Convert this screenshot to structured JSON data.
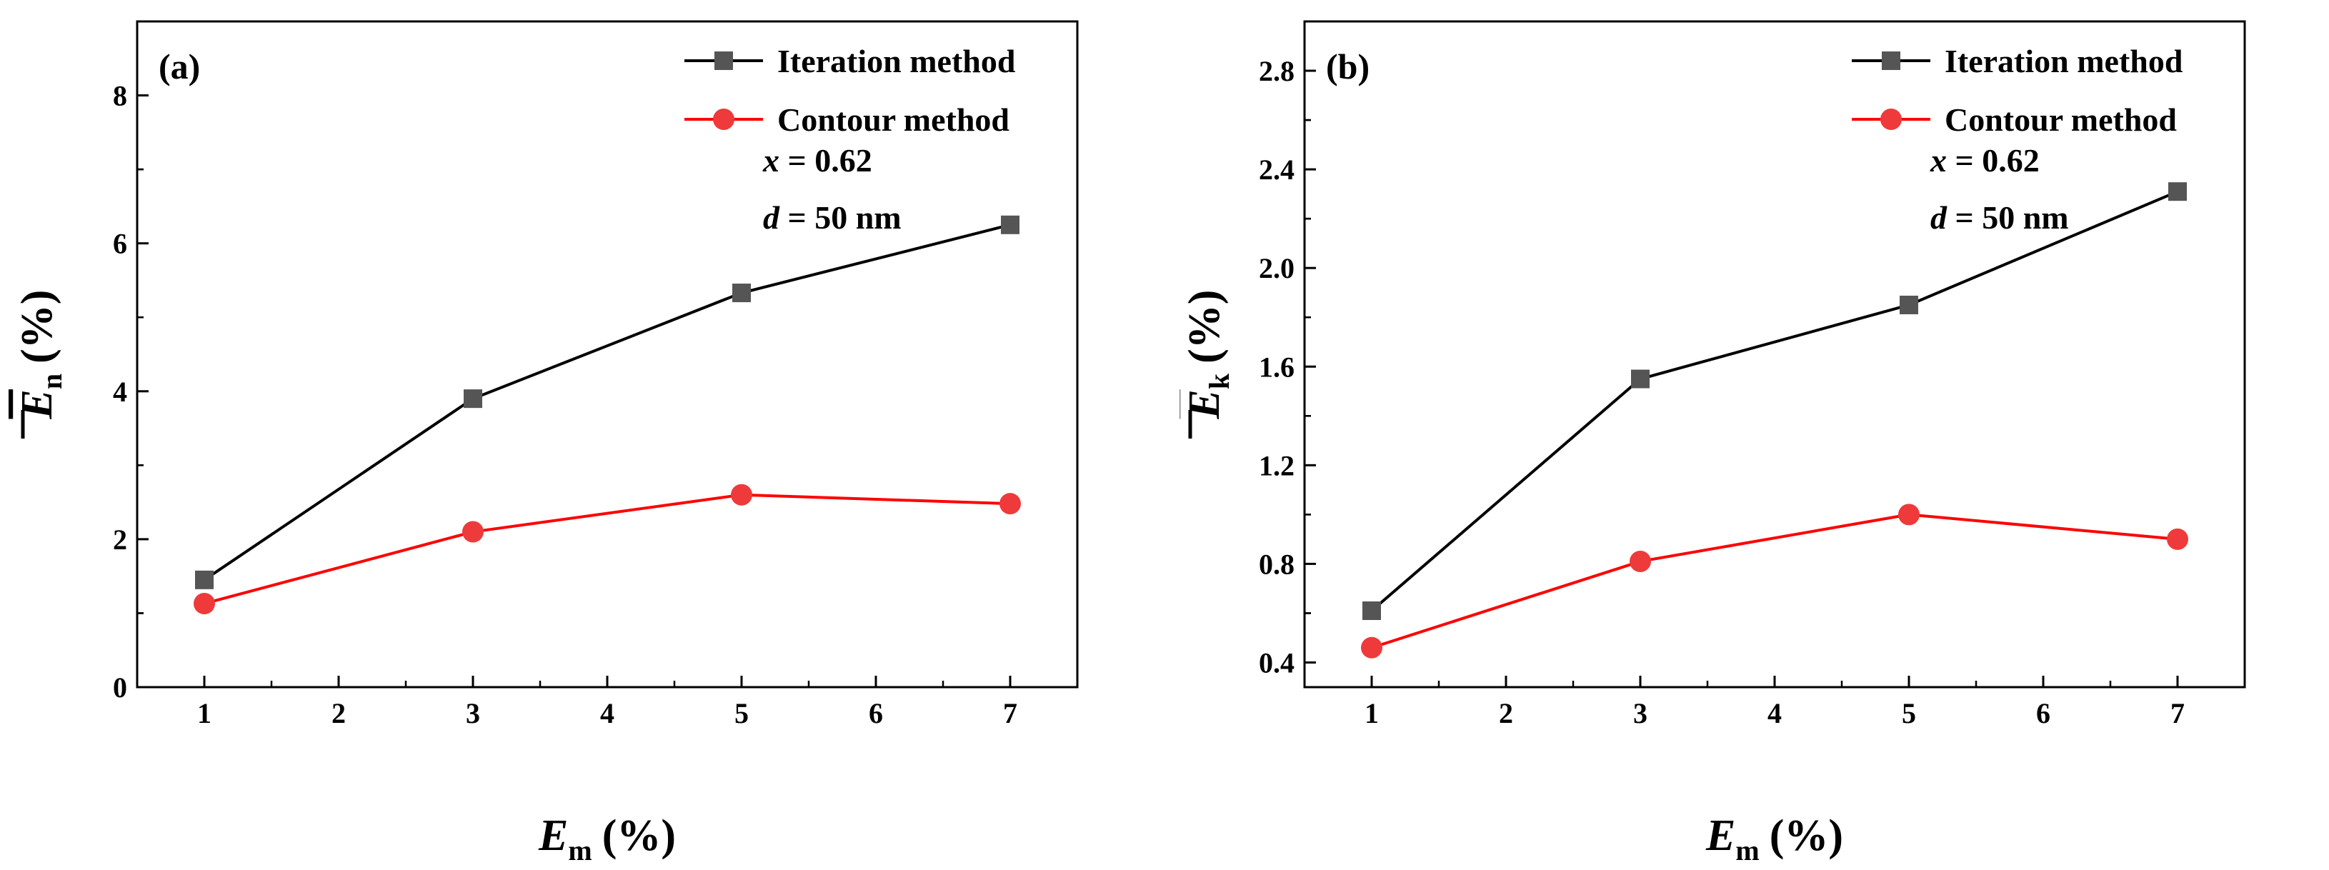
{
  "colors": {
    "iteration": "#000000",
    "iteration_marker": "#555555",
    "contour": "#ff0000",
    "contour_marker": "#ee3a3a"
  },
  "chart_data": [
    {
      "type": "line",
      "panel_label": "(a)",
      "x": [
        1,
        3,
        5,
        7
      ],
      "xticks": [
        "1",
        "2",
        "3",
        "4",
        "5",
        "6",
        "7"
      ],
      "xlim": [
        0.5,
        7.5
      ],
      "xlabel": {
        "symbol": "E",
        "subscript": "m",
        "unit": "(%)"
      },
      "ylabel": {
        "symbol": "E",
        "subscript": "n",
        "unit": "(%)",
        "overline": true
      },
      "yticks": [
        "0",
        "2",
        "4",
        "6",
        "8"
      ],
      "ylim": [
        0,
        9
      ],
      "series": [
        {
          "name": "Iteration method",
          "marker": "square",
          "values": [
            1.45,
            3.9,
            5.33,
            6.25
          ]
        },
        {
          "name": "Contour method",
          "marker": "circle",
          "values": [
            1.13,
            2.1,
            2.6,
            2.48
          ]
        }
      ],
      "legend_position": "top-right",
      "annotations": {
        "x_label": "x",
        "x_value": "= 0.62",
        "d_label": "d",
        "d_value": "= 50 nm"
      }
    },
    {
      "type": "line",
      "panel_label": "(b)",
      "x": [
        1,
        3,
        5,
        7
      ],
      "xticks": [
        "1",
        "2",
        "3",
        "4",
        "5",
        "6",
        "7"
      ],
      "xlim": [
        0.5,
        7.5
      ],
      "xlabel": {
        "symbol": "E",
        "subscript": "m",
        "unit": "(%)"
      },
      "ylabel": {
        "symbol": "E",
        "subscript": "k",
        "unit": "(%)",
        "overline": true
      },
      "yticks": [
        "0.4",
        "0.8",
        "1.2",
        "1.6",
        "2.0",
        "2.4",
        "2.8"
      ],
      "ylim": [
        0.3,
        3.0
      ],
      "series": [
        {
          "name": "Iteration method",
          "marker": "square",
          "values": [
            0.61,
            1.55,
            1.85,
            2.31
          ]
        },
        {
          "name": "Contour method",
          "marker": "circle",
          "values": [
            0.46,
            0.81,
            1.0,
            0.9
          ]
        }
      ],
      "legend_position": "top-right",
      "annotations": {
        "x_label": "x",
        "x_value": "= 0.62",
        "d_label": "d",
        "d_value": "= 50 nm"
      }
    }
  ]
}
